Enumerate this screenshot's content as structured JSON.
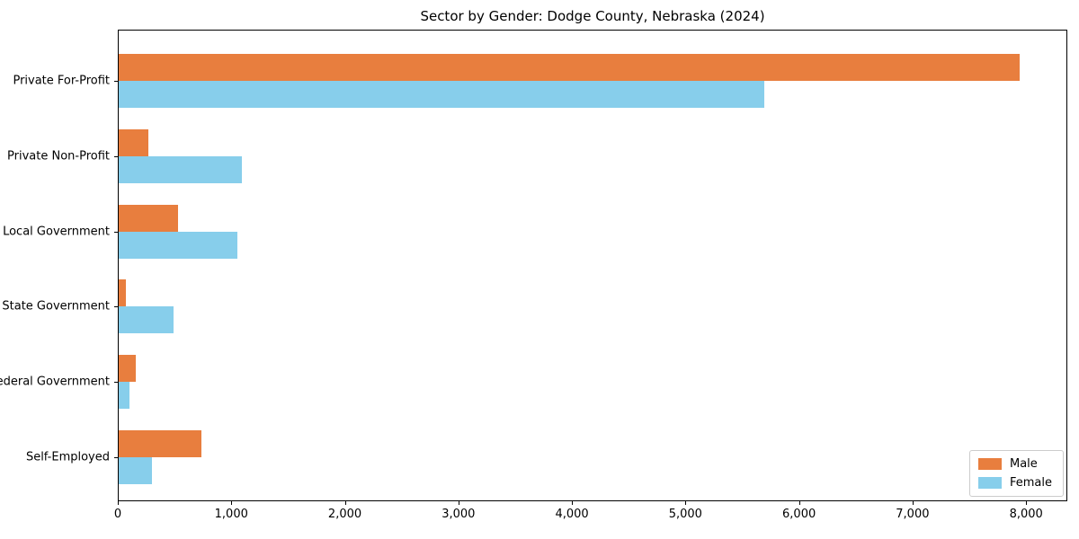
{
  "chart_data": {
    "type": "bar",
    "orientation": "horizontal",
    "title": "Sector by Gender: Dodge County, Nebraska (2024)",
    "categories": [
      "Private For-Profit",
      "Private Non-Profit",
      "Local Government",
      "State Government",
      "Federal Government",
      "Self-Employed"
    ],
    "series": [
      {
        "name": "Male",
        "color": "#e87e3e",
        "values": [
          7945,
          260,
          520,
          65,
          150,
          730
        ]
      },
      {
        "name": "Female",
        "color": "#87ceeb",
        "values": [
          5690,
          1085,
          1045,
          485,
          95,
          295
        ]
      }
    ],
    "xlabel": "",
    "ylabel": "",
    "xlim": [
      0,
      8355
    ],
    "xticks": {
      "values": [
        0,
        1000,
        2000,
        3000,
        4000,
        5000,
        6000,
        7000,
        8000
      ],
      "labels": [
        "0",
        "1,000",
        "2,000",
        "3,000",
        "4,000",
        "5,000",
        "6,000",
        "7,000",
        "8,000"
      ]
    },
    "grid": false,
    "legend": {
      "position": "lower right"
    }
  },
  "colors": {
    "male": "#e87e3e",
    "female": "#87ceeb",
    "axis": "#000000",
    "text": "#000000",
    "legend_border": "#cccccc",
    "background": "#ffffff"
  }
}
